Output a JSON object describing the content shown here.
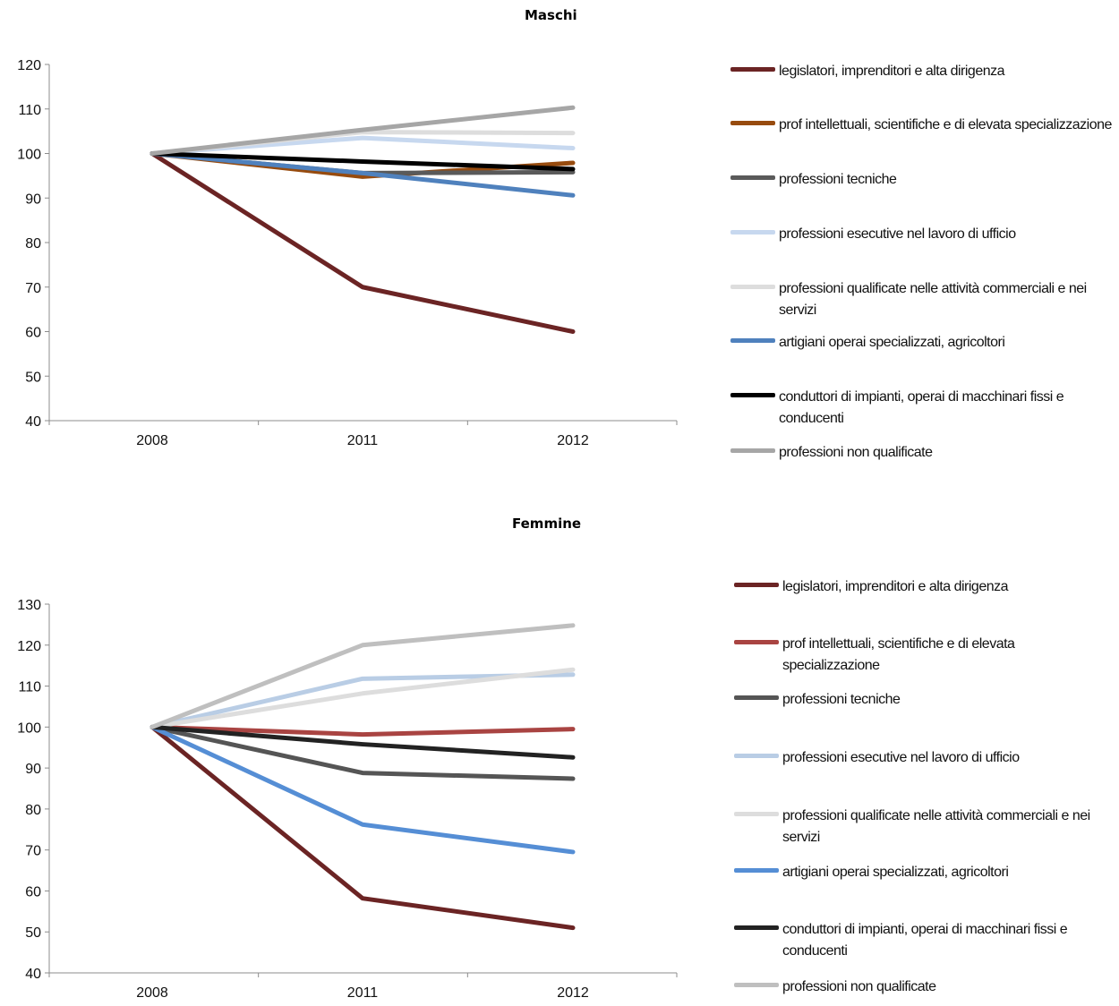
{
  "chart_data": [
    {
      "type": "line",
      "title": "Maschi",
      "x": [
        "2008",
        "2011",
        "2012"
      ],
      "ylim": [
        40,
        120
      ],
      "yticks": [
        40,
        50,
        60,
        70,
        80,
        90,
        100,
        110,
        120
      ],
      "grid": false,
      "legend_position": "right",
      "series": [
        {
          "name": "legislatori, imprenditori e alta dirigenza",
          "color": "#6b2424",
          "values": [
            100,
            70,
            60
          ]
        },
        {
          "name": "prof intellettuali, scientifiche e di elevata specializzazione",
          "color": "#974b0e",
          "values": [
            100,
            94.8,
            97.9
          ]
        },
        {
          "name": "professioni tecniche",
          "color": "#5a5a5a",
          "values": [
            100,
            95.6,
            95.8
          ]
        },
        {
          "name": "professioni esecutive nel lavoro di ufficio",
          "color": "#c7d8ef",
          "values": [
            100,
            103.5,
            101.2
          ]
        },
        {
          "name": "professioni qualificate nelle attività commerciali e nei servizi",
          "color": "#dddddd",
          "values": [
            100,
            104.8,
            104.6
          ]
        },
        {
          "name": "artigiani operai specializzati, agricoltori",
          "color": "#4f81bd",
          "values": [
            100,
            95.6,
            90.6
          ]
        },
        {
          "name": "conduttori di impianti, operai di macchinari fissi e conducenti",
          "color": "#000000",
          "values": [
            100,
            98.2,
            96.5
          ]
        },
        {
          "name": "professioni non qualificate",
          "color": "#a6a6a6",
          "values": [
            100,
            105.3,
            110.3
          ]
        }
      ]
    },
    {
      "type": "line",
      "title": "Femmine",
      "x": [
        "2008",
        "2011",
        "2012"
      ],
      "ylim": [
        40,
        130
      ],
      "yticks": [
        40,
        50,
        60,
        70,
        80,
        90,
        100,
        110,
        120,
        130
      ],
      "grid": false,
      "legend_position": "right",
      "series": [
        {
          "name": "legislatori, imprenditori e alta dirigenza",
          "color": "#6b2424",
          "values": [
            100,
            58.2,
            51
          ]
        },
        {
          "name": "prof intellettuali, scientifiche e di elevata specializzazione",
          "color": "#a94442",
          "values": [
            100,
            98.2,
            99.5
          ]
        },
        {
          "name": "professioni tecniche",
          "color": "#555555",
          "values": [
            100,
            88.8,
            87.4
          ]
        },
        {
          "name": "professioni esecutive nel lavoro di ufficio",
          "color": "#b9cde5",
          "values": [
            100,
            111.8,
            112.8
          ]
        },
        {
          "name": "professioni qualificate nelle attività commerciali e nei servizi",
          "color": "#dddddd",
          "values": [
            100,
            108.2,
            114
          ]
        },
        {
          "name": "artigiani operai specializzati, agricoltori",
          "color": "#558ed5",
          "values": [
            100,
            76.2,
            69.5
          ]
        },
        {
          "name": "conduttori di impianti, operai di macchinari fissi e conducenti",
          "color": "#222222",
          "values": [
            100,
            95.8,
            92.6
          ]
        },
        {
          "name": "professioni non qualificate",
          "color": "#bfbfbf",
          "values": [
            100,
            120,
            124.8
          ]
        }
      ]
    }
  ]
}
